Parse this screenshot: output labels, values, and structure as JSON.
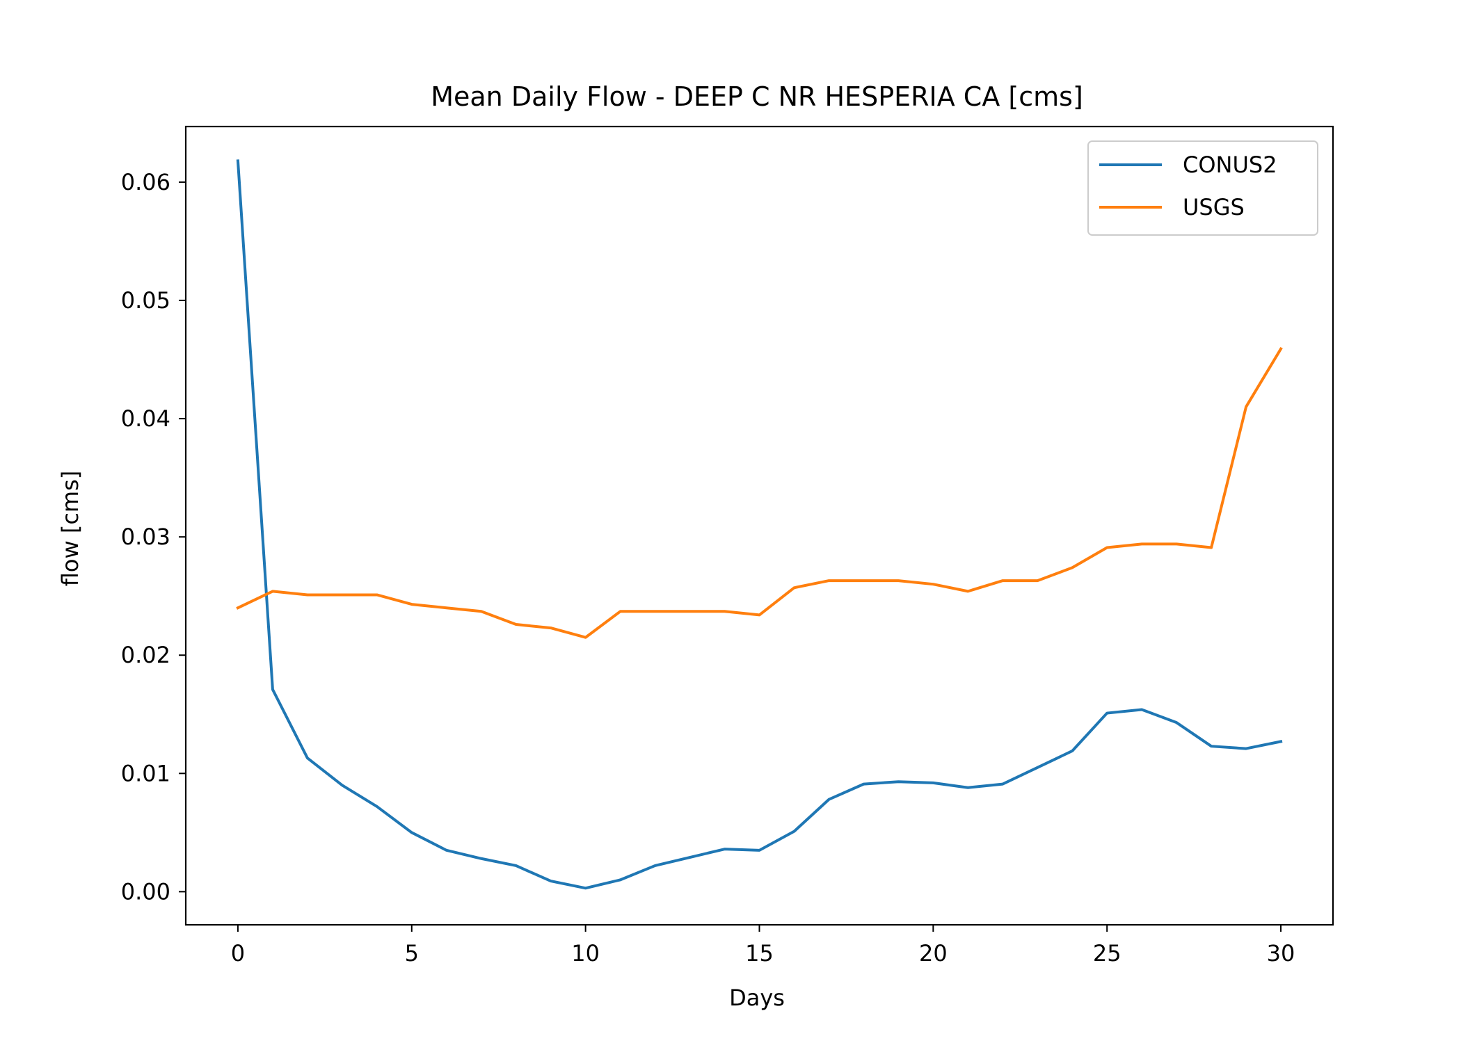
{
  "chart_data": {
    "type": "line",
    "title": "Mean Daily Flow - DEEP C NR HESPERIA CA [cms]",
    "xlabel": "Days",
    "ylabel": "flow [cms]",
    "xlim": [
      -1.5,
      31.5
    ],
    "ylim": [
      -0.0028,
      0.0647
    ],
    "xticks": [
      "0",
      "5",
      "10",
      "15",
      "20",
      "25",
      "30"
    ],
    "xtick_values": [
      0,
      5,
      10,
      15,
      20,
      25,
      30
    ],
    "yticks": [
      "0.00",
      "0.01",
      "0.02",
      "0.03",
      "0.04",
      "0.05",
      "0.06"
    ],
    "ytick_values": [
      0,
      0.01,
      0.02,
      0.03,
      0.04,
      0.05,
      0.06
    ],
    "grid": false,
    "legend_position": "top-right",
    "x": [
      0,
      1,
      2,
      3,
      4,
      5,
      6,
      7,
      8,
      9,
      10,
      11,
      12,
      13,
      14,
      15,
      16,
      17,
      18,
      19,
      20,
      21,
      22,
      23,
      24,
      25,
      26,
      27,
      28,
      29,
      30
    ],
    "series": [
      {
        "name": "CONUS2",
        "color": "#1f77b4",
        "values": [
          0.0618,
          0.0171,
          0.0113,
          0.009,
          0.0072,
          0.005,
          0.0035,
          0.0028,
          0.0022,
          0.0009,
          0.0003,
          0.001,
          0.0022,
          0.0029,
          0.0036,
          0.0035,
          0.0051,
          0.0078,
          0.0091,
          0.0093,
          0.0092,
          0.0088,
          0.0091,
          0.0105,
          0.0119,
          0.0151,
          0.0154,
          0.0143,
          0.0123,
          0.0121,
          0.0127
        ]
      },
      {
        "name": "USGS",
        "color": "#ff7f0e",
        "values": [
          0.024,
          0.0254,
          0.0251,
          0.0251,
          0.0251,
          0.0243,
          0.024,
          0.0237,
          0.0226,
          0.0223,
          0.0215,
          0.0237,
          0.0237,
          0.0237,
          0.0237,
          0.0234,
          0.0257,
          0.0263,
          0.0263,
          0.0263,
          0.026,
          0.0254,
          0.0263,
          0.0263,
          0.0274,
          0.0291,
          0.0294,
          0.0294,
          0.0291,
          0.041,
          0.0459
        ]
      }
    ]
  }
}
